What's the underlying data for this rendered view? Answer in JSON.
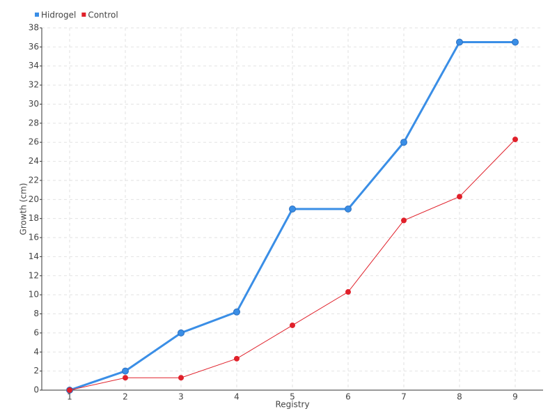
{
  "chart_data": {
    "type": "line",
    "x_label": "Registry",
    "y_label": "Growth (cm)",
    "categories": [
      "1",
      "2",
      "3",
      "4",
      "5",
      "6",
      "7",
      "8",
      "9"
    ],
    "series": [
      {
        "name": "Hidrogel",
        "color": "#3a8ee6",
        "values": [
          0,
          2,
          6,
          8.2,
          19,
          19,
          26,
          36.5,
          36.5
        ]
      },
      {
        "name": "Control",
        "color": "#e0202a",
        "values": [
          0,
          1.3,
          1.3,
          3.3,
          6.8,
          10.3,
          17.8,
          20.3,
          26.3
        ]
      }
    ],
    "ylim": [
      0,
      38
    ],
    "yticks": [
      0,
      2,
      4,
      6,
      8,
      10,
      12,
      14,
      16,
      18,
      20,
      22,
      24,
      26,
      28,
      30,
      32,
      34,
      36,
      38
    ],
    "grid": true,
    "legend": "top-left"
  }
}
